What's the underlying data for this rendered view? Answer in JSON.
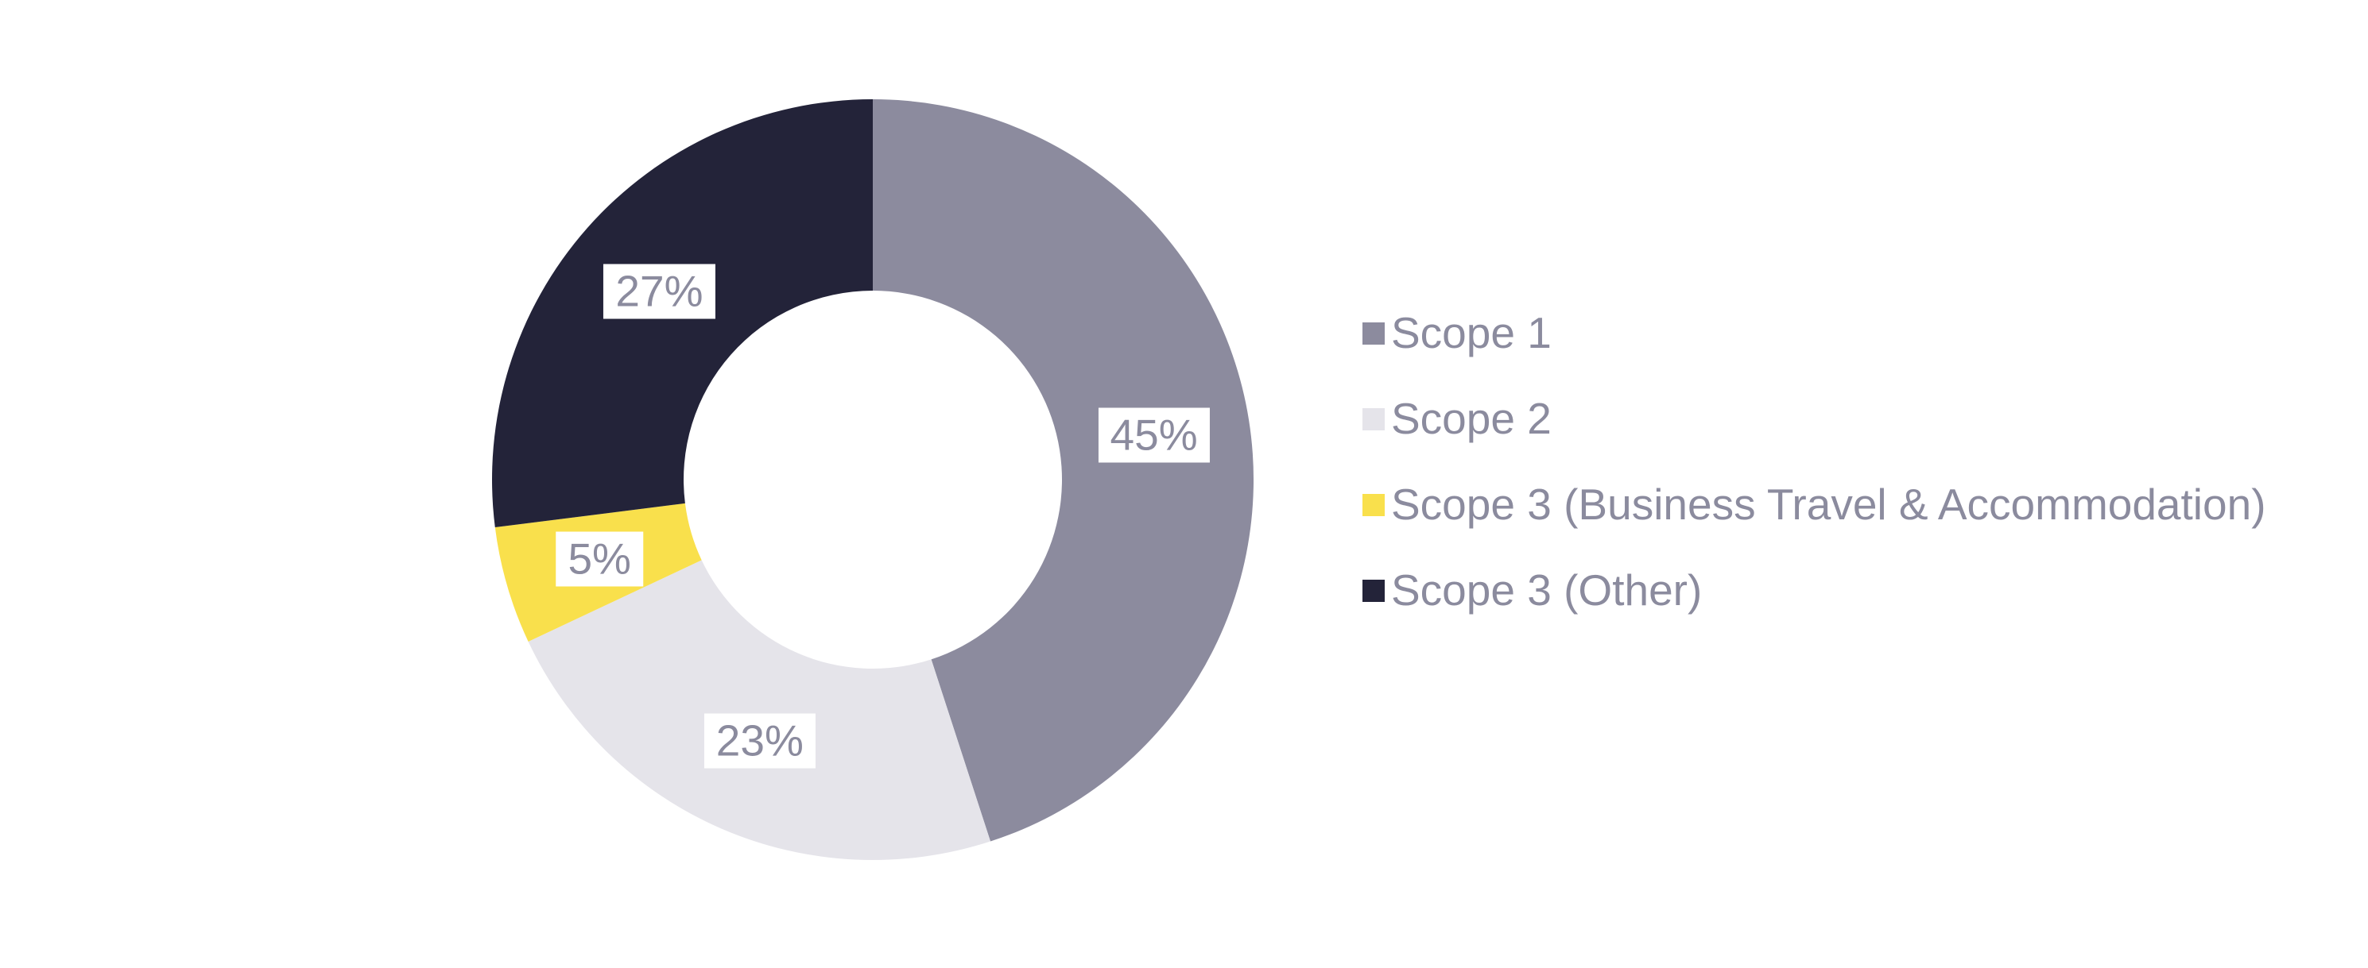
{
  "chart_data": {
    "type": "pie",
    "variant": "donut",
    "title": "",
    "direction": "clockwise",
    "start_angle_deg": 0,
    "inner_radius_ratio": 0.5,
    "background_color": "#ffffff",
    "label_position": "mid-ring",
    "label_text_color": "#8b8b9e",
    "label_bg_color": "#ffffff",
    "legend_position": "right",
    "legend_text_color": "#8b8b9e",
    "series": [
      {
        "name": "Scope 1",
        "value": 45,
        "label": "45%",
        "color": "#8c8b9e"
      },
      {
        "name": "Scope 2",
        "value": 23,
        "label": "23%",
        "color": "#e5e4ea"
      },
      {
        "name": "Scope 3 (Business Travel & Accommodation)",
        "value": 5,
        "label": "5%",
        "color": "#f9e04c"
      },
      {
        "name": "Scope 3 (Other)",
        "value": 27,
        "label": "27%",
        "color": "#232339"
      }
    ]
  }
}
